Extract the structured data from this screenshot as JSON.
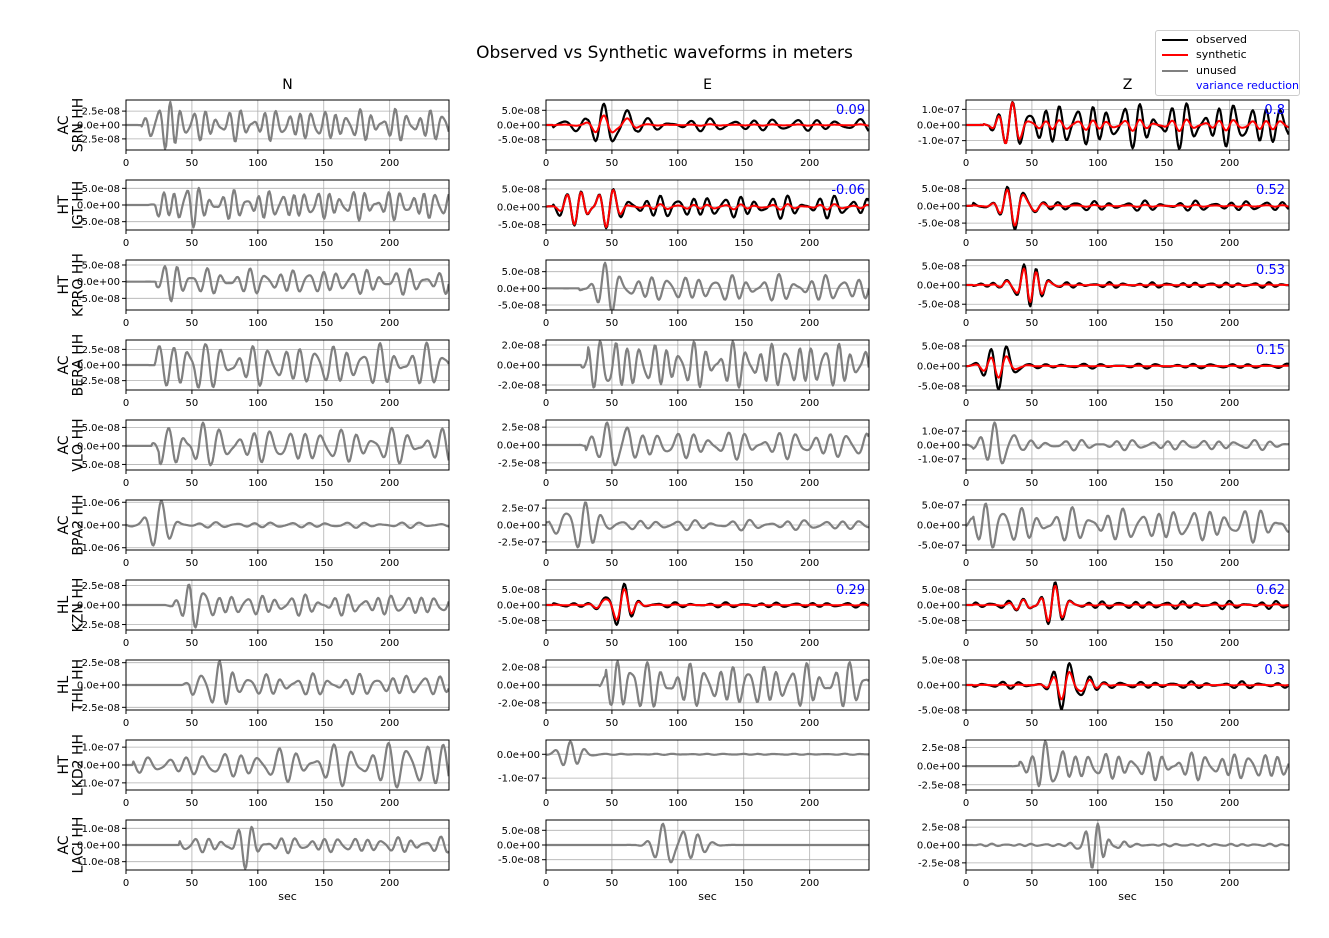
{
  "title": "Observed vs Synthetic waveforms in meters",
  "colors": {
    "observed": "#000000",
    "synthetic": "#ff0000",
    "unused": "#808080",
    "variance_reduction": "#0000ff",
    "grid": "#b0b0b0"
  },
  "legend": {
    "items": [
      {
        "label": "observed",
        "color": "#000000",
        "kind": "line"
      },
      {
        "label": "synthetic",
        "color": "#ff0000",
        "kind": "line"
      },
      {
        "label": "unused",
        "color": "#808080",
        "kind": "line"
      },
      {
        "label": "variance reduction",
        "color": "#0000ff",
        "kind": "text"
      }
    ]
  },
  "chart_data": {
    "type": "line",
    "title": "Observed vs Synthetic waveforms in meters",
    "components": [
      "N",
      "E",
      "Z"
    ],
    "xlabel": "sec",
    "xlim": [
      0,
      245
    ],
    "xticks": [
      0,
      50,
      100,
      150,
      200
    ],
    "grid": true,
    "legend_position": "top-right",
    "stations": [
      {
        "name": "AC\nSRN HH",
        "panels": [
          {
            "status": "unused",
            "yticks": [
              "2.5e-08",
              "0.0e+00",
              "-2.5e-08"
            ],
            "ylim": [
              -4.5e-08,
              4.5e-08
            ],
            "amp_frac": 0.95,
            "onset": 17,
            "center": 32,
            "period": 9,
            "decay": 0.5,
            "seed": 1
          },
          {
            "status": "used",
            "vr": "0.09",
            "yticks": [
              "5.0e-08",
              "0.0e+00",
              "-5.0e-08"
            ],
            "ylim": [
              -8.5e-08,
              8.5e-08
            ],
            "amp_frac": 0.85,
            "onset": 5,
            "center": 50,
            "period": 16,
            "decay": 0.1,
            "syn_ratio": 0.45,
            "seed": 2
          },
          {
            "status": "used",
            "vr": "0.8",
            "yticks": [
              "1.0e-07",
              "0.0e+00",
              "-1.0e-07"
            ],
            "ylim": [
              -1.6e-07,
              1.6e-07
            ],
            "amp_frac": 0.95,
            "onset": 18,
            "center": 32,
            "period": 12,
            "decay": 1.0,
            "syn_ratio": 0.95,
            "seed": 3
          }
        ]
      },
      {
        "name": "HT\nIGT HH",
        "panels": [
          {
            "status": "unused",
            "yticks": [
              "5.0e-08",
              "0.0e+00",
              "-5.0e-08"
            ],
            "ylim": [
              -7.5e-08,
              7.5e-08
            ],
            "amp_frac": 0.9,
            "onset": 22,
            "center": 45,
            "period": 9,
            "decay": 0.5,
            "seed": 4
          },
          {
            "status": "used",
            "vr": "-0.06",
            "yticks": [
              "5.0e-08",
              "0.0e+00",
              "-5.0e-08"
            ],
            "ylim": [
              -6.5e-08,
              7.5e-08
            ],
            "amp_frac": 0.8,
            "onset": 5,
            "center": 35,
            "period": 12,
            "decay": 0.3,
            "syn_ratio": 0.95,
            "seed": 5
          },
          {
            "status": "used",
            "vr": "0.52",
            "yticks": [
              "5.0e-08",
              "0.0e+00",
              "-5.0e-08"
            ],
            "ylim": [
              -7e-08,
              7.5e-08
            ],
            "amp_frac": 0.9,
            "onset": 5,
            "center": 38,
            "period": 13,
            "decay": 0.2,
            "syn_ratio": 0.85,
            "seed": 6
          }
        ]
      },
      {
        "name": "HT\nKPRO HH",
        "panels": [
          {
            "status": "unused",
            "yticks": [
              "5.0e-08",
              "0.0e+00",
              "-5.0e-08"
            ],
            "ylim": [
              -8.5e-08,
              6.5e-08
            ],
            "amp_frac": 0.9,
            "onset": 28,
            "center": 38,
            "period": 11,
            "decay": 0.5,
            "seed": 7
          },
          {
            "status": "unused",
            "yticks": [
              "5.0e-08",
              "0.0e+00",
              "-5.0e-08"
            ],
            "ylim": [
              -6.5e-08,
              8.5e-08
            ],
            "amp_frac": 0.9,
            "onset": 30,
            "center": 45,
            "period": 12,
            "decay": 0.5,
            "seed": 8
          },
          {
            "status": "used",
            "vr": "0.53",
            "yticks": [
              "5.0e-08",
              "0.0e+00",
              "-5.0e-08"
            ],
            "ylim": [
              -6.5e-08,
              6.5e-08
            ],
            "amp_frac": 0.85,
            "onset": 5,
            "center": 48,
            "period": 11,
            "decay": 0.1,
            "syn_ratio": 0.8,
            "seed": 9
          }
        ]
      },
      {
        "name": "AC\nBERA HH",
        "panels": [
          {
            "status": "unused",
            "yticks": [
              "2.5e-08",
              "0.0e+00",
              "-2.5e-08"
            ],
            "ylim": [
              -4e-08,
              4e-08
            ],
            "amp_frac": 0.9,
            "onset": 22,
            "center": 48,
            "period": 12,
            "decay": 0.35,
            "seed": 10
          },
          {
            "status": "unused",
            "yticks": [
              "2.0e-08",
              "0.0e+00",
              "-2.0e-08"
            ],
            "ylim": [
              -2.5e-08,
              2.5e-08
            ],
            "amp_frac": 0.95,
            "onset": 32,
            "center": 50,
            "period": 10,
            "decay": 0.6,
            "seed": 11
          },
          {
            "status": "used",
            "vr": "0.15",
            "yticks": [
              "5.0e-08",
              "0.0e+00",
              "-5.0e-08"
            ],
            "ylim": [
              -6e-08,
              6.5e-08
            ],
            "amp_frac": 0.9,
            "onset": 5,
            "center": 25,
            "period": 14,
            "decay": 0.08,
            "syn_ratio": 0.5,
            "seed": 12
          }
        ]
      },
      {
        "name": "AC\nVLO HH",
        "panels": [
          {
            "status": "unused",
            "yticks": [
              "5.0e-08",
              "0.0e+00",
              "-5.0e-08"
            ],
            "ylim": [
              -6.5e-08,
              7e-08
            ],
            "amp_frac": 0.9,
            "onset": 25,
            "center": 48,
            "period": 13,
            "decay": 0.4,
            "seed": 13
          },
          {
            "status": "unused",
            "yticks": [
              "2.5e-08",
              "0.0e+00",
              "-2.5e-08"
            ],
            "ylim": [
              -3.5e-08,
              3.5e-08
            ],
            "amp_frac": 0.9,
            "onset": 30,
            "center": 55,
            "period": 13,
            "decay": 0.4,
            "seed": 14
          },
          {
            "status": "unused",
            "yticks": [
              "1.0e-07",
              "0.0e+00",
              "-1.0e-07"
            ],
            "ylim": [
              -1.8e-07,
              1.8e-07
            ],
            "amp_frac": 0.9,
            "onset": 5,
            "center": 25,
            "period": 13,
            "decay": 0.15,
            "seed": 15
          }
        ]
      },
      {
        "name": "AC\nBPA2 HH",
        "panels": [
          {
            "status": "unused",
            "yticks": [
              "1.0e-06",
              "0.0e+00",
              "-1.0e-06"
            ],
            "ylim": [
              -1.1e-06,
              1.1e-06
            ],
            "amp_frac": 0.95,
            "onset": 2,
            "center": 25,
            "period": 14,
            "decay": 0.12,
            "seed": 16
          },
          {
            "status": "unused",
            "yticks": [
              "2.5e-07",
              "0.0e+00",
              "-2.5e-07"
            ],
            "ylim": [
              -3.7e-07,
              3.7e-07
            ],
            "amp_frac": 0.9,
            "onset": 2,
            "center": 25,
            "period": 14,
            "decay": 0.12,
            "seed": 17
          },
          {
            "status": "unused",
            "yticks": [
              "5.0e-07",
              "0.0e+00",
              "-5.0e-07"
            ],
            "ylim": [
              -6.2e-07,
              6.2e-07
            ],
            "amp_frac": 0.9,
            "onset": 5,
            "center": 20,
            "period": 13,
            "decay": 0.4,
            "seed": 18
          }
        ]
      },
      {
        "name": "HL\nKZN HH",
        "panels": [
          {
            "status": "unused",
            "yticks": [
              "2.5e-08",
              "0.0e+00",
              "-2.5e-08"
            ],
            "ylim": [
              -3.2e-08,
              3.2e-08
            ],
            "amp_frac": 0.9,
            "onset": 35,
            "center": 55,
            "period": 11,
            "decay": 0.4,
            "seed": 19
          },
          {
            "status": "used",
            "vr": "0.29",
            "yticks": [
              "5.0e-08",
              "0.0e+00",
              "-5.0e-08"
            ],
            "ylim": [
              -8e-08,
              8e-08
            ],
            "amp_frac": 0.85,
            "onset": 5,
            "center": 55,
            "period": 13,
            "decay": 0.1,
            "syn_ratio": 0.75,
            "seed": 20
          },
          {
            "status": "used",
            "vr": "0.62",
            "yticks": [
              "5.0e-08",
              "0.0e+00",
              "-5.0e-08"
            ],
            "ylim": [
              -8e-08,
              8e-08
            ],
            "amp_frac": 0.9,
            "onset": 5,
            "center": 60,
            "period": 12,
            "decay": 0.15,
            "syn_ratio": 0.85,
            "seed": 21
          }
        ]
      },
      {
        "name": "HL\nTHL HH",
        "panels": [
          {
            "status": "unused",
            "yticks": [
              "2.5e-08",
              "0.0e+00",
              "-2.5e-08"
            ],
            "ylim": [
              -2.8e-08,
              2.8e-08
            ],
            "amp_frac": 0.95,
            "onset": 48,
            "center": 70,
            "period": 12,
            "decay": 0.35,
            "seed": 22
          },
          {
            "status": "unused",
            "yticks": [
              "2.0e-08",
              "0.0e+00",
              "-2.0e-08"
            ],
            "ylim": [
              -2.8e-08,
              2.8e-08
            ],
            "amp_frac": 0.95,
            "onset": 45,
            "center": 62,
            "period": 11,
            "decay": 0.4,
            "seed": 23
          },
          {
            "status": "used",
            "vr": "0.3",
            "yticks": [
              "5.0e-08",
              "0.0e+00",
              "-5.0e-08"
            ],
            "ylim": [
              -5e-08,
              5e-08
            ],
            "amp_frac": 0.95,
            "onset": 5,
            "center": 80,
            "period": 13,
            "decay": 0.12,
            "syn_ratio": 0.6,
            "seed": 24
          }
        ]
      },
      {
        "name": "HT\nLKD2 HH",
        "panels": [
          {
            "status": "unused",
            "yticks": [
              "1.0e-07",
              "0.0e+00",
              "-1.0e-07"
            ],
            "ylim": [
              -1.4e-07,
              1.4e-07
            ],
            "amp_frac": 0.9,
            "onset": 5,
            "center": 230,
            "period": 14,
            "decay": 0.0,
            "growth": true,
            "seed": 25
          },
          {
            "status": "unused",
            "yticks": [
              "0.0e+00",
              "-1.0e-07"
            ],
            "ylim": [
              -1.5e-07,
              6e-08
            ],
            "amp_frac": 0.9,
            "onset": 5,
            "center": 20,
            "period": 13,
            "decay": 0.03,
            "seed": 26
          },
          {
            "status": "unused",
            "yticks": [
              "2.5e-08",
              "0.0e+00",
              "-2.5e-08"
            ],
            "ylim": [
              -3.2e-08,
              3.5e-08
            ],
            "amp_frac": 0.95,
            "onset": 40,
            "center": 65,
            "period": 11,
            "decay": 0.45,
            "seed": 27
          }
        ]
      },
      {
        "name": "AC\nLACI HH",
        "panels": [
          {
            "status": "unused",
            "yticks": [
              "1.0e-08",
              "0.0e+00",
              "-1.0e-08"
            ],
            "ylim": [
              -1.5e-08,
              1.5e-08
            ],
            "amp_frac": 0.95,
            "onset": 40,
            "center": 92,
            "period": 11,
            "decay": 0.35,
            "seed": 28
          },
          {
            "status": "unused",
            "yticks": [
              "5.0e-08",
              "0.0e+00",
              "-5.0e-08"
            ],
            "ylim": [
              -8.5e-08,
              8.5e-08
            ],
            "amp_frac": 0.85,
            "onset": 5,
            "center": 100,
            "period": 13,
            "decay": 0.0,
            "seed": 29
          },
          {
            "status": "unused",
            "yticks": [
              "2.5e-08",
              "0.0e+00",
              "-2.5e-08"
            ],
            "ylim": [
              -3.5e-08,
              3.5e-08
            ],
            "amp_frac": 0.9,
            "onset": 5,
            "center": 100,
            "period": 10,
            "decay": 0.05,
            "seed": 30
          }
        ]
      }
    ]
  }
}
